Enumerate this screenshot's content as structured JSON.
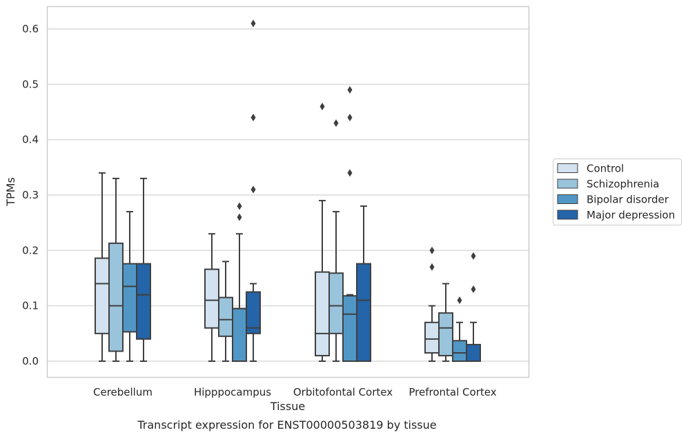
{
  "caption": "Transcript expression for ENST00000503819 by tissue",
  "chart_data": {
    "type": "boxplot",
    "title": "",
    "xlabel": "Tissue",
    "ylabel": "TPMs",
    "ylim": [
      -0.03,
      0.64
    ],
    "yticks": [
      0.0,
      0.1,
      0.2,
      0.3,
      0.4,
      0.5,
      0.6
    ],
    "ytick_labels": [
      "0.0",
      "0.1",
      "0.2",
      "0.3",
      "0.4",
      "0.5",
      "0.6"
    ],
    "grid": "horizontal",
    "legend_position": "right",
    "categories": [
      "Cerebellum",
      "Hipppocampus",
      "Orbitofontal Cortex",
      "Prefrontal Cortex"
    ],
    "series": [
      {
        "name": "Control",
        "color": "#d2e2f1",
        "boxes": [
          {
            "whislo": 0.0,
            "q1": 0.05,
            "med": 0.14,
            "q3": 0.186,
            "whishi": 0.34,
            "fliers": []
          },
          {
            "whislo": 0.0,
            "q1": 0.06,
            "med": 0.11,
            "q3": 0.166,
            "whishi": 0.23,
            "fliers": []
          },
          {
            "whislo": 0.0,
            "q1": 0.01,
            "med": 0.05,
            "q3": 0.161,
            "whishi": 0.29,
            "fliers": [
              0.46
            ]
          },
          {
            "whislo": 0.0,
            "q1": 0.015,
            "med": 0.04,
            "q3": 0.07,
            "whishi": 0.1,
            "fliers": [
              0.17,
              0.2
            ]
          }
        ]
      },
      {
        "name": "Schizophrenia",
        "color": "#9ac3dc",
        "boxes": [
          {
            "whislo": 0.0,
            "q1": 0.018,
            "med": 0.1,
            "q3": 0.213,
            "whishi": 0.33,
            "fliers": []
          },
          {
            "whislo": 0.0,
            "q1": 0.045,
            "med": 0.075,
            "q3": 0.115,
            "whishi": 0.18,
            "fliers": []
          },
          {
            "whislo": 0.0,
            "q1": 0.05,
            "med": 0.1,
            "q3": 0.159,
            "whishi": 0.27,
            "fliers": [
              0.43
            ]
          },
          {
            "whislo": 0.0,
            "q1": 0.01,
            "med": 0.06,
            "q3": 0.087,
            "whishi": 0.14,
            "fliers": []
          }
        ]
      },
      {
        "name": "Bipolar disorder",
        "color": "#5197c6",
        "boxes": [
          {
            "whislo": 0.0,
            "q1": 0.053,
            "med": 0.135,
            "q3": 0.176,
            "whishi": 0.27,
            "fliers": []
          },
          {
            "whislo": 0.0,
            "q1": 0.0,
            "med": 0.095,
            "q3": 0.095,
            "whishi": 0.23,
            "fliers": [
              0.26,
              0.28
            ]
          },
          {
            "whislo": 0.0,
            "q1": 0.0,
            "med": 0.085,
            "q3": 0.118,
            "whishi": 0.12,
            "fliers": [
              0.34,
              0.44,
              0.49
            ]
          },
          {
            "whislo": 0.0,
            "q1": 0.0,
            "med": 0.015,
            "q3": 0.037,
            "whishi": 0.07,
            "fliers": [
              0.11
            ]
          }
        ]
      },
      {
        "name": "Major depression",
        "color": "#2464a8",
        "boxes": [
          {
            "whislo": 0.0,
            "q1": 0.04,
            "med": 0.12,
            "q3": 0.176,
            "whishi": 0.33,
            "fliers": []
          },
          {
            "whislo": 0.0,
            "q1": 0.05,
            "med": 0.06,
            "q3": 0.125,
            "whishi": 0.14,
            "fliers": [
              0.31,
              0.44,
              0.61
            ]
          },
          {
            "whislo": 0.0,
            "q1": 0.0,
            "med": 0.11,
            "q3": 0.176,
            "whishi": 0.28,
            "fliers": []
          },
          {
            "whislo": 0.0,
            "q1": 0.0,
            "med": 0.0,
            "q3": 0.03,
            "whishi": 0.07,
            "fliers": [
              0.13,
              0.19
            ]
          }
        ]
      }
    ]
  }
}
